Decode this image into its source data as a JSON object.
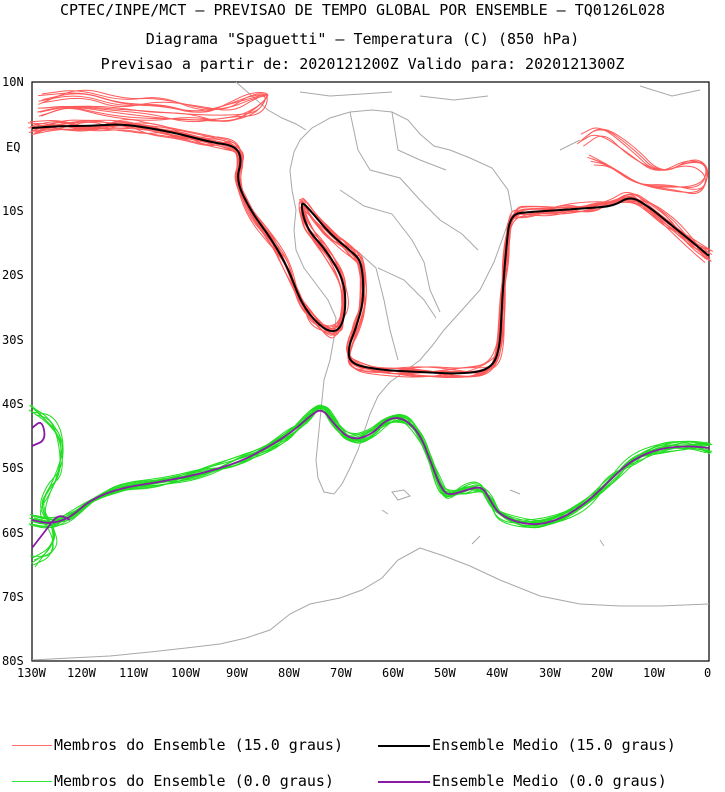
{
  "titles": {
    "line1": "CPTEC/INPE/MCT – PREVISAO DE TEMPO GLOBAL POR ENSEMBLE – TQ0126L028",
    "line2": "Diagrama \"Spaguetti\" – Temperatura (C) (850 hPa)",
    "line3": "Previsao a partir de: 2020121200Z  Valido para: 2020121300Z"
  },
  "axes": {
    "lat_labels": [
      "10N",
      "EQ",
      "10S",
      "20S",
      "30S",
      "40S",
      "50S",
      "60S",
      "70S",
      "80S"
    ],
    "lon_labels": [
      "130W",
      "120W",
      "110W",
      "100W",
      "90W",
      "80W",
      "70W",
      "60W",
      "50W",
      "40W",
      "30W",
      "20W",
      "10W",
      "0"
    ]
  },
  "legend": [
    {
      "label": "Membros do Ensemble (15.0 graus)",
      "color": "#ff6b6b"
    },
    {
      "label": "Ensemble Medio (15.0 graus)",
      "color": "#000000"
    },
    {
      "label": "Membros do Ensemble (0.0 graus)",
      "color": "#2ee82e"
    },
    {
      "label": "Ensemble Medio (0.0 graus)",
      "color": "#8a1aa8"
    }
  ],
  "colors": {
    "member_15": "#ff5a5a",
    "mean_15": "#000000",
    "member_0": "#22dd22",
    "mean_0": "#8a1aa8",
    "coast": "#a8a8a8"
  }
}
